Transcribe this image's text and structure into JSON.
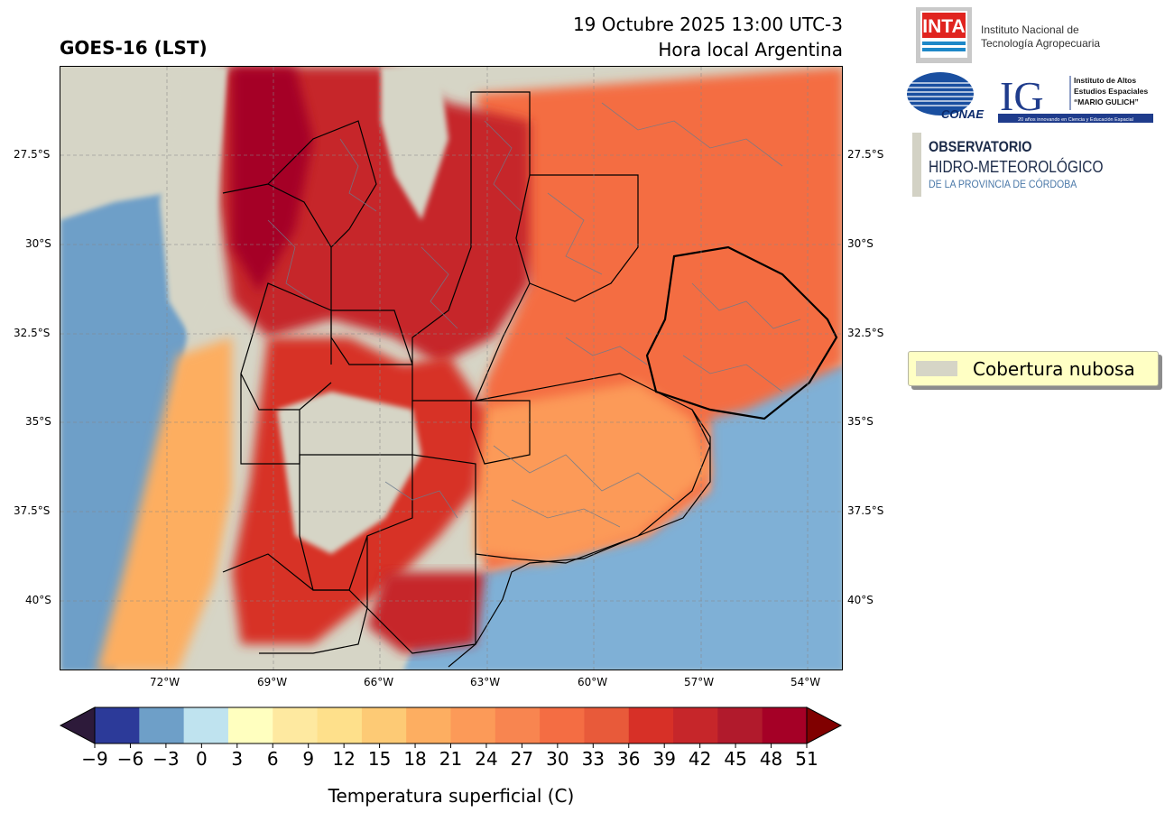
{
  "header": {
    "title": "GOES-16 (LST)",
    "datetime_line1": "19 Octubre 2025 13:00 UTC-3",
    "datetime_line2": "Hora local Argentina"
  },
  "map": {
    "lat_ticks": [
      "27.5°S",
      "30°S",
      "32.5°S",
      "35°S",
      "37.5°S",
      "40°S"
    ],
    "lon_ticks": [
      "72°W",
      "69°W",
      "66°W",
      "63°W",
      "60°W",
      "57°W",
      "54°W"
    ],
    "cloud_color": "#d6d5c6"
  },
  "legend": {
    "label": "Cobertura nubosa",
    "swatch_color": "#d6d5c6"
  },
  "colorbar": {
    "label": "Temperatura superficial (C)",
    "ticks": [
      "−9",
      "−6",
      "−3",
      "0",
      "3",
      "6",
      "9",
      "12",
      "15",
      "18",
      "21",
      "24",
      "27",
      "30",
      "33",
      "36",
      "39",
      "42",
      "45",
      "48",
      "51"
    ],
    "under_color": "#2d1a3a",
    "over_color": "#800000",
    "colors": [
      "#2c3a99",
      "#6e9fc8",
      "#bfe3ef",
      "#ffffbf",
      "#fee9a0",
      "#fee08b",
      "#fdca75",
      "#fdae61",
      "#fc9a58",
      "#f88550",
      "#f46d43",
      "#e85a3a",
      "#d73027",
      "#c6262a",
      "#b11a2c",
      "#a50026"
    ]
  },
  "logos": {
    "inta_mark": "INTA",
    "inta_line1": "Instituto Nacional de",
    "inta_line2": "Tecnología Agropecuaria",
    "conae_mark": "CONAE",
    "ig_mark": "IG",
    "ig_line1": "Instituto de Altos",
    "ig_line2": "Estudios Espaciales",
    "ig_line3": "“MARIO GULICH”",
    "ig_banner": "20 años innovando en Ciencia y Educación Espacial",
    "obs_line1": "OBSERVATORIO",
    "obs_line2": "HIDRO-METEOROLÓGICO",
    "obs_line3": "DE LA PROVINCIA DE CÓRDOBA"
  }
}
